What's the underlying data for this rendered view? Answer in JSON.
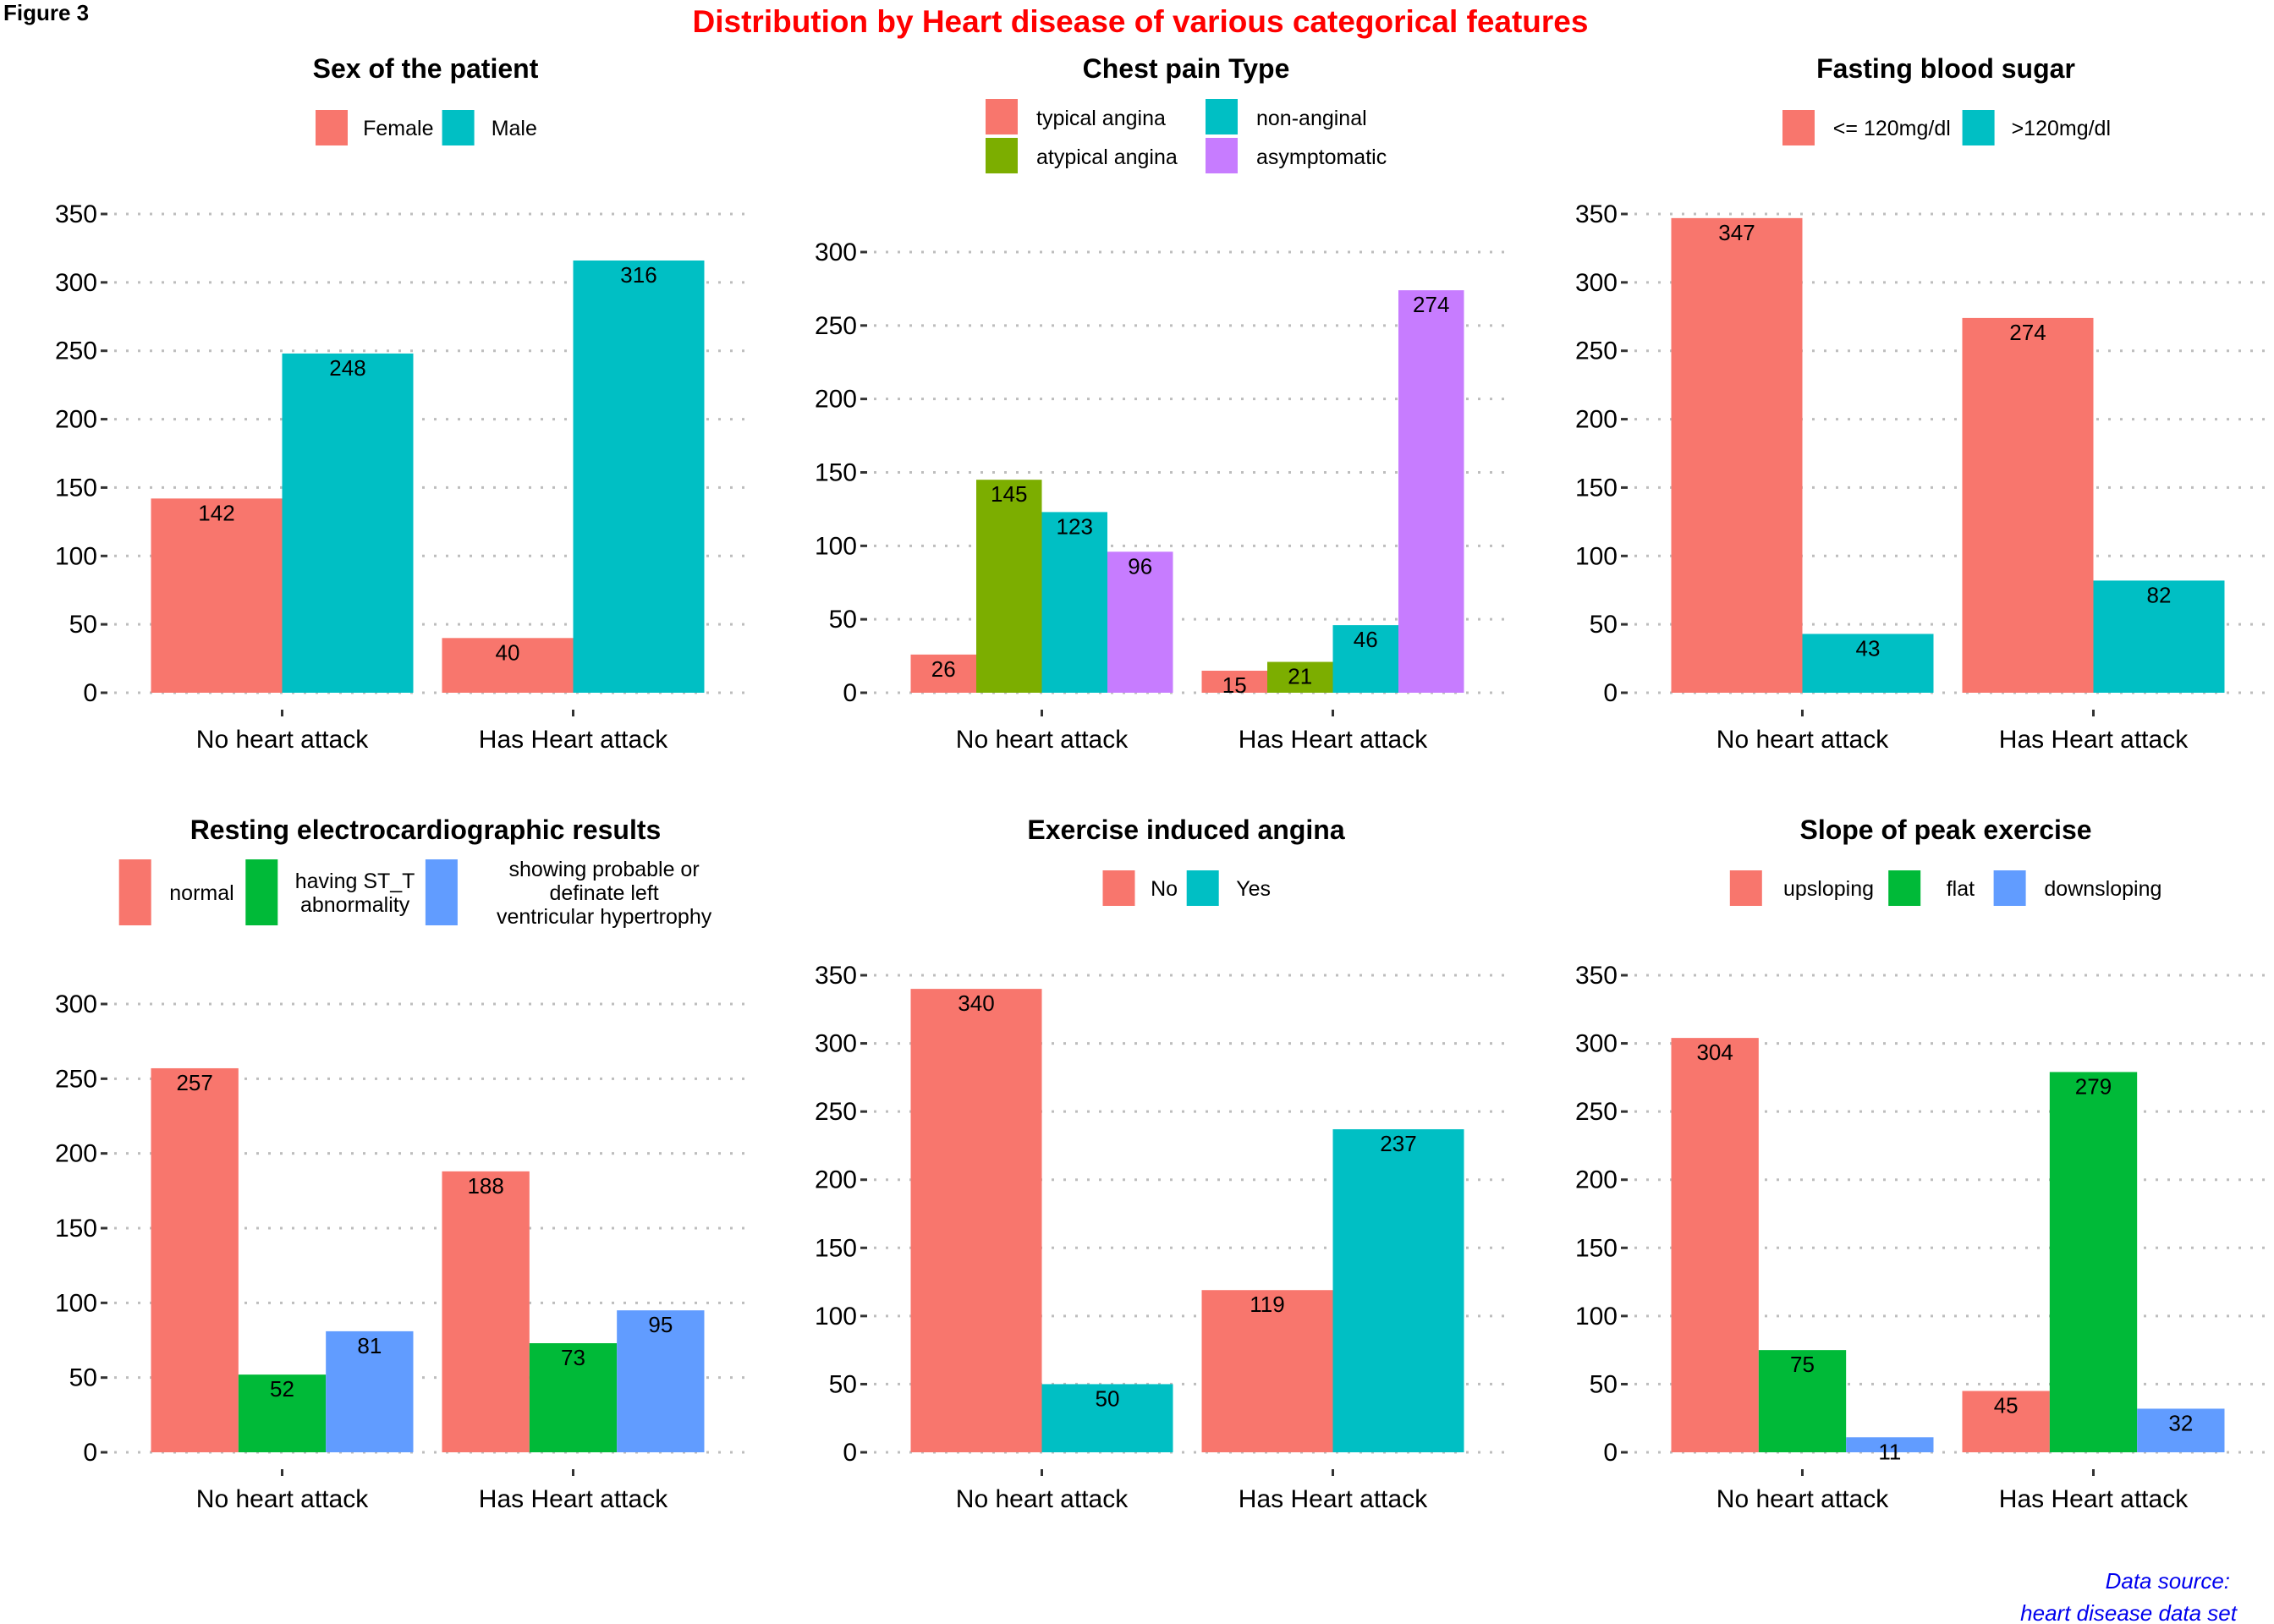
{
  "figure_label": "Figure 3",
  "title": "Distribution by Heart disease of various categorical features",
  "source": [
    "Data source:",
    "heart disease data set"
  ],
  "chart_data": [
    {
      "type": "bar",
      "title": "Sex of the patient",
      "categories": [
        "No heart attack",
        "Has Heart attack"
      ],
      "series": [
        {
          "name": "Female",
          "color": "#F8766D",
          "values": [
            142,
            40
          ]
        },
        {
          "name": "Male",
          "color": "#00BFC4",
          "values": [
            248,
            316
          ]
        }
      ],
      "yticks": [
        0,
        50,
        100,
        150,
        200,
        250,
        300,
        350
      ],
      "ylim": [
        0,
        350
      ],
      "grid": true,
      "legend_position": "top"
    },
    {
      "type": "bar",
      "title": "Chest pain Type",
      "categories": [
        "No heart attack",
        "Has Heart attack"
      ],
      "series": [
        {
          "name": "typical angina",
          "color": "#F8766D",
          "values": [
            26,
            15
          ]
        },
        {
          "name": "atypical angina",
          "color": "#7CAE00",
          "values": [
            145,
            21
          ]
        },
        {
          "name": "non-anginal",
          "color": "#00BFC4",
          "values": [
            123,
            46
          ]
        },
        {
          "name": "asymptomatic",
          "color": "#C77CFF",
          "values": [
            96,
            274
          ]
        }
      ],
      "yticks": [
        0,
        50,
        100,
        150,
        200,
        250,
        300
      ],
      "ylim": [
        0,
        300
      ],
      "grid": true,
      "legend_position": "top",
      "legend_layout": "2x2"
    },
    {
      "type": "bar",
      "title": "Fasting blood sugar",
      "categories": [
        "No heart attack",
        "Has Heart attack"
      ],
      "series": [
        {
          "name": "<= 120mg/dl",
          "color": "#F8766D",
          "values": [
            347,
            274
          ]
        },
        {
          "name": ">120mg/dl",
          "color": "#00BFC4",
          "values": [
            43,
            82
          ]
        }
      ],
      "yticks": [
        0,
        50,
        100,
        150,
        200,
        250,
        300,
        350
      ],
      "ylim": [
        0,
        350
      ],
      "grid": true,
      "legend_position": "top"
    },
    {
      "type": "bar",
      "title": "Resting electrocardiographic results",
      "categories": [
        "No heart attack",
        "Has Heart attack"
      ],
      "series": [
        {
          "name": "normal",
          "color": "#F8766D",
          "values": [
            257,
            188
          ]
        },
        {
          "name": "having ST_T\nabnormality",
          "color": "#00BA38",
          "values": [
            52,
            73
          ]
        },
        {
          "name": "showing probable or\n definate left\n ventricular hypertrophy",
          "color": "#619CFF",
          "values": [
            81,
            95
          ]
        }
      ],
      "yticks": [
        0,
        50,
        100,
        150,
        200,
        250,
        300
      ],
      "ylim": [
        0,
        300
      ],
      "grid": true,
      "legend_position": "top"
    },
    {
      "type": "bar",
      "title": "Exercise induced angina",
      "categories": [
        "No heart attack",
        "Has Heart attack"
      ],
      "series": [
        {
          "name": "No",
          "color": "#F8766D",
          "values": [
            340,
            119
          ]
        },
        {
          "name": "Yes",
          "color": "#00BFC4",
          "values": [
            50,
            237
          ]
        }
      ],
      "yticks": [
        0,
        50,
        100,
        150,
        200,
        250,
        300,
        350
      ],
      "ylim": [
        0,
        350
      ],
      "grid": true,
      "legend_position": "top"
    },
    {
      "type": "bar",
      "title": "Slope of peak exercise",
      "categories": [
        "No heart attack",
        "Has Heart attack"
      ],
      "series": [
        {
          "name": "upsloping",
          "color": "#F8766D",
          "values": [
            304,
            45
          ]
        },
        {
          "name": "flat",
          "color": "#00BA38",
          "values": [
            75,
            279
          ]
        },
        {
          "name": "downsloping",
          "color": "#619CFF",
          "values": [
            11,
            32
          ]
        }
      ],
      "yticks": [
        0,
        50,
        100,
        150,
        200,
        250,
        300,
        350
      ],
      "ylim": [
        0,
        350
      ],
      "grid": true,
      "legend_position": "top"
    }
  ]
}
